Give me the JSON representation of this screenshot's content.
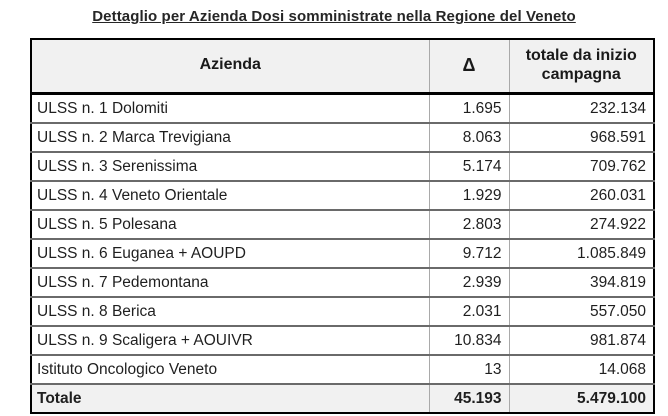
{
  "title": "Dettaglio per Azienda Dosi somministrate nella Regione del Veneto",
  "table": {
    "headers": {
      "azienda": "Azienda",
      "delta": "Δ",
      "totale": "totale da inizio campagna"
    },
    "rows": [
      {
        "name": "ULSS n. 1 Dolomiti",
        "delta": "1.695",
        "total": "232.134"
      },
      {
        "name": "ULSS n. 2 Marca Trevigiana",
        "delta": "8.063",
        "total": "968.591"
      },
      {
        "name": "ULSS n. 3 Serenissima",
        "delta": "5.174",
        "total": "709.762"
      },
      {
        "name": "ULSS n. 4 Veneto Orientale",
        "delta": "1.929",
        "total": "260.031"
      },
      {
        "name": "ULSS n. 5 Polesana",
        "delta": "2.803",
        "total": "274.922"
      },
      {
        "name": "ULSS n. 6 Euganea + AOUPD",
        "delta": "9.712",
        "total": "1.085.849"
      },
      {
        "name": "ULSS n. 7 Pedemontana",
        "delta": "2.939",
        "total": "394.819"
      },
      {
        "name": "ULSS n. 8 Berica",
        "delta": "2.031",
        "total": "557.050"
      },
      {
        "name": "ULSS n. 9 Scaligera + AOUIVR",
        "delta": "10.834",
        "total": "981.874"
      },
      {
        "name": "Istituto Oncologico Veneto",
        "delta": "13",
        "total": "14.068"
      }
    ],
    "total": {
      "name": "Totale",
      "delta": "45.193",
      "total": "5.479.100"
    }
  },
  "colors": {
    "header_bg": "#f1f1f1",
    "total_row_bg": "#f1f1f1",
    "outer_border": "#000000",
    "row_line": "#6a6a6a",
    "column_line": "#a9a9a9",
    "text": "#1f1f1f"
  }
}
